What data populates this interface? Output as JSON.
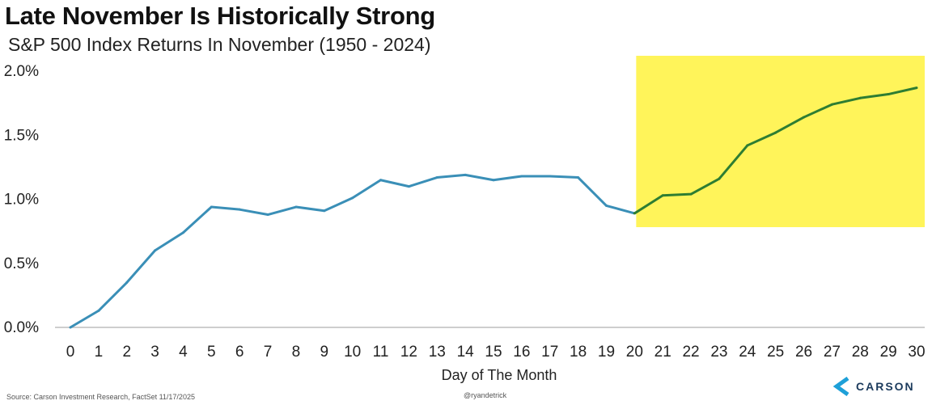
{
  "chart_data": {
    "type": "line",
    "title": "Late November Is Historically Strong",
    "subtitle": "S&P 500 Index Returns In November (1950 - 2024)",
    "xlabel": "Day of The Month",
    "ylabel": "",
    "x": [
      0,
      1,
      2,
      3,
      4,
      5,
      6,
      7,
      8,
      9,
      10,
      11,
      12,
      13,
      14,
      15,
      16,
      17,
      18,
      19,
      20,
      21,
      22,
      23,
      24,
      25,
      26,
      27,
      28,
      29,
      30
    ],
    "series": [
      {
        "values": [
          0.0,
          0.13,
          0.35,
          0.6,
          0.74,
          0.94,
          0.92,
          0.88,
          0.94,
          0.91,
          1.01,
          1.15,
          1.1,
          1.17,
          1.19,
          1.15,
          1.18,
          1.18,
          1.17,
          0.95,
          0.89,
          1.03,
          1.04,
          1.16,
          1.42,
          1.52,
          1.64,
          1.74,
          1.79,
          1.82,
          1.87
        ],
        "color_early": "#3a8fb7",
        "color_late": "#2e7d32"
      }
    ],
    "highlight": {
      "x_from": 20,
      "x_to": 30,
      "color": "#fff45a"
    },
    "ylim": [
      0,
      2.0
    ],
    "yticks": [
      "0.0%",
      "0.5%",
      "1.0%",
      "1.5%",
      "2.0%"
    ],
    "ytick_values": [
      0,
      0.5,
      1.0,
      1.5,
      2.0
    ],
    "xticks": [
      "0",
      "1",
      "2",
      "3",
      "4",
      "5",
      "6",
      "7",
      "8",
      "9",
      "10",
      "11",
      "12",
      "13",
      "14",
      "15",
      "16",
      "17",
      "18",
      "19",
      "20",
      "21",
      "22",
      "23",
      "24",
      "25",
      "26",
      "27",
      "28",
      "29",
      "30"
    ],
    "grid": false
  },
  "footer": {
    "source": "Source: Carson Investment Research, FactSet 11/17/2025",
    "handle": "@ryandetrick",
    "brand": "CARSON"
  }
}
